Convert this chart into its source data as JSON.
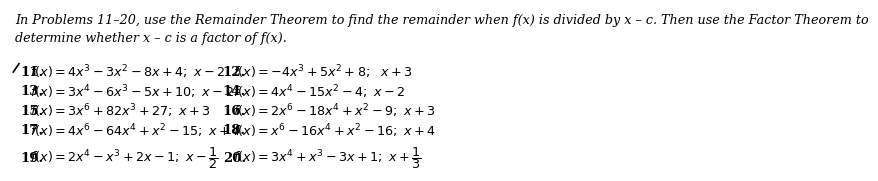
{
  "header": "In Problems 11–20, use the Remainder Theorem to find the remainder when f(x) is divided by x – c. Then use the Factor Theorem to\ndetermine whether x – c is a factor of f(x).",
  "problems": [
    {
      "num": "11.",
      "text": "$f(x) = 4x^3 - 3x^2 - 8x + 4; \\ x - 2$",
      "col": 0,
      "row": 0
    },
    {
      "num": "12.",
      "text": "$f(x) = -4x^3 + 5x^2 + 8; \\ \\ x + 3$",
      "col": 1,
      "row": 0
    },
    {
      "num": "13.",
      "text": "$f(x) = 3x^4 - 6x^3 - 5x + 10; \\ x - 2$",
      "col": 0,
      "row": 1
    },
    {
      "num": "14.",
      "text": "$f(x) = 4x^4 - 15x^2 - 4; \\ x - 2$",
      "col": 1,
      "row": 1
    },
    {
      "num": "15.",
      "text": "$f(x) = 3x^6 + 82x^3 + 27; \\ x + 3$",
      "col": 0,
      "row": 2
    },
    {
      "num": "16.",
      "text": "$f(x) = 2x^6 - 18x^4 + x^2 - 9; \\ x + 3$",
      "col": 1,
      "row": 2
    },
    {
      "num": "17.",
      "text": "$f(x) = 4x^6 - 64x^4 + x^2 - 15; \\ x + 4$",
      "col": 0,
      "row": 3
    },
    {
      "num": "18.",
      "text": "$f(x) = x^6 - 16x^4 + x^2 - 16; \\ x + 4$",
      "col": 1,
      "row": 3
    },
    {
      "num": "19.",
      "text": "$f(x) = 2x^4 - x^3 + 2x - 1; \\ x - \\dfrac{1}{2}$",
      "col": 0,
      "row": 4
    },
    {
      "num": "20.",
      "text": "$f(x) = 3x^4 + x^3 - 3x + 1; \\ x + \\dfrac{1}{3}$",
      "col": 1,
      "row": 4
    }
  ],
  "bg_color": "#ffffff",
  "text_color": "#000000",
  "header_fontsize": 9.2,
  "num_fontsize": 9.5,
  "prob_fontsize": 9.2
}
